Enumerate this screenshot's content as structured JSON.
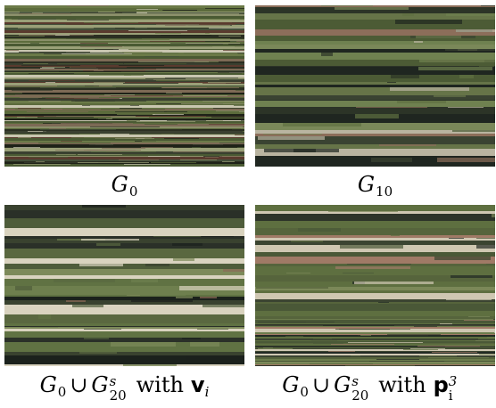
{
  "panels": [
    {
      "caption": {
        "symbol": "G",
        "subscript": "0"
      },
      "palette": [
        "#4a5a33",
        "#2b2f22",
        "#6b7a48",
        "#1e2218",
        "#8a8f6a",
        "#5c6b3c",
        "#3a4030",
        "#9aa078",
        "#7d6a55",
        "#c9c6b0",
        "#5a3a2e",
        "#44503a"
      ],
      "band_mode": "noisy"
    },
    {
      "caption": {
        "symbol": "G",
        "subscript": "10"
      },
      "palette": [
        "#5f7142",
        "#6f8150",
        "#4c5b35",
        "#2c3427",
        "#1f2620",
        "#7a8859",
        "#3a4332",
        "#8c6e5a",
        "#b9b4a0",
        "#667448"
      ],
      "band_mode": "smooth"
    },
    {
      "caption": {
        "symbol": "G",
        "subscript": "0",
        "union_symbol": "G",
        "union_sup": "s",
        "union_sub": "20",
        "with_word": "with",
        "vec_letter": "v",
        "vec_sub": "i",
        "vec_sup": ""
      },
      "palette": [
        "#607243",
        "#6e7f4e",
        "#2a3028",
        "#1b211c",
        "#4e5c3a",
        "#7d8a5a",
        "#39422f",
        "#d9d3bf",
        "#8a6a55",
        "#5a6840"
      ],
      "band_mode": "smooth"
    },
    {
      "caption": {
        "symbol": "G",
        "subscript": "0",
        "union_symbol": "G",
        "union_sup": "s",
        "union_sub": "20",
        "with_word": "with",
        "vec_letter": "p",
        "vec_sub": "i",
        "vec_sup": "3"
      },
      "palette": [
        "#5e6f40",
        "#6c7c4c",
        "#2d3429",
        "#222a24",
        "#4a5837",
        "#7b8858",
        "#3b4431",
        "#a07a66",
        "#cfc7b2",
        "#56643c"
      ],
      "band_mode": "mixed"
    }
  ]
}
